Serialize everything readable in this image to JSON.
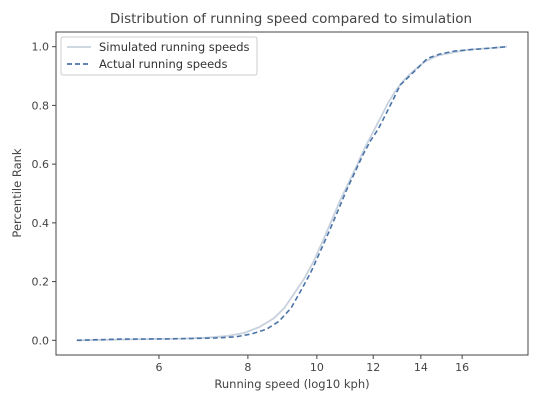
{
  "chart_data": {
    "type": "line",
    "title": "Distribution of running speed compared to simulation",
    "xlabel": "Running speed (log10 kph)",
    "ylabel": "Percentile Rank",
    "x_scale": "log",
    "xlim": [
      4.3,
      19.8
    ],
    "ylim": [
      -0.05,
      1.05
    ],
    "x_ticks": [
      6,
      8,
      10,
      12,
      14,
      16
    ],
    "x_tick_labels": [
      "6",
      "8",
      "10",
      "12",
      "14",
      "16"
    ],
    "y_ticks": [
      0.0,
      0.2,
      0.4,
      0.6,
      0.8,
      1.0
    ],
    "y_tick_labels": [
      "0.0",
      "0.2",
      "0.4",
      "0.6",
      "0.8",
      "1.0"
    ],
    "grid": false,
    "legend_position": "top-left",
    "series": [
      {
        "name": "Simulated running speeds",
        "style": "solid",
        "color": "#c8d2de",
        "x": [
          4.6,
          5.5,
          6.5,
          7.0,
          7.5,
          7.9,
          8.3,
          8.7,
          9.0,
          9.3,
          9.6,
          9.9,
          10.2,
          10.5,
          10.8,
          11.1,
          11.4,
          11.7,
          12.0,
          12.3,
          12.6,
          12.9,
          13.3,
          13.7,
          14.2,
          14.8,
          15.5,
          16.3,
          17.5,
          18.5
        ],
        "values": [
          0.0,
          0.003,
          0.006,
          0.009,
          0.015,
          0.025,
          0.045,
          0.075,
          0.11,
          0.16,
          0.21,
          0.27,
          0.34,
          0.41,
          0.48,
          0.54,
          0.6,
          0.66,
          0.71,
          0.76,
          0.81,
          0.85,
          0.89,
          0.92,
          0.95,
          0.97,
          0.98,
          0.99,
          0.995,
          1.0
        ]
      },
      {
        "name": "Actual running speeds",
        "style": "dashed",
        "color": "#4a74a8",
        "x": [
          4.6,
          5.3,
          6.2,
          7.2,
          7.7,
          8.1,
          8.5,
          8.85,
          9.2,
          9.5,
          9.8,
          10.1,
          10.4,
          10.7,
          11.0,
          11.3,
          11.6,
          11.9,
          12.2,
          12.5,
          12.8,
          13.1,
          13.5,
          13.9,
          14.3,
          14.9,
          15.6,
          16.5,
          17.5,
          18.5
        ],
        "values": [
          0.0,
          0.004,
          0.005,
          0.008,
          0.012,
          0.022,
          0.038,
          0.065,
          0.11,
          0.17,
          0.23,
          0.3,
          0.37,
          0.44,
          0.51,
          0.57,
          0.63,
          0.68,
          0.72,
          0.77,
          0.82,
          0.87,
          0.9,
          0.93,
          0.96,
          0.975,
          0.985,
          0.99,
          0.995,
          1.0
        ]
      }
    ]
  }
}
